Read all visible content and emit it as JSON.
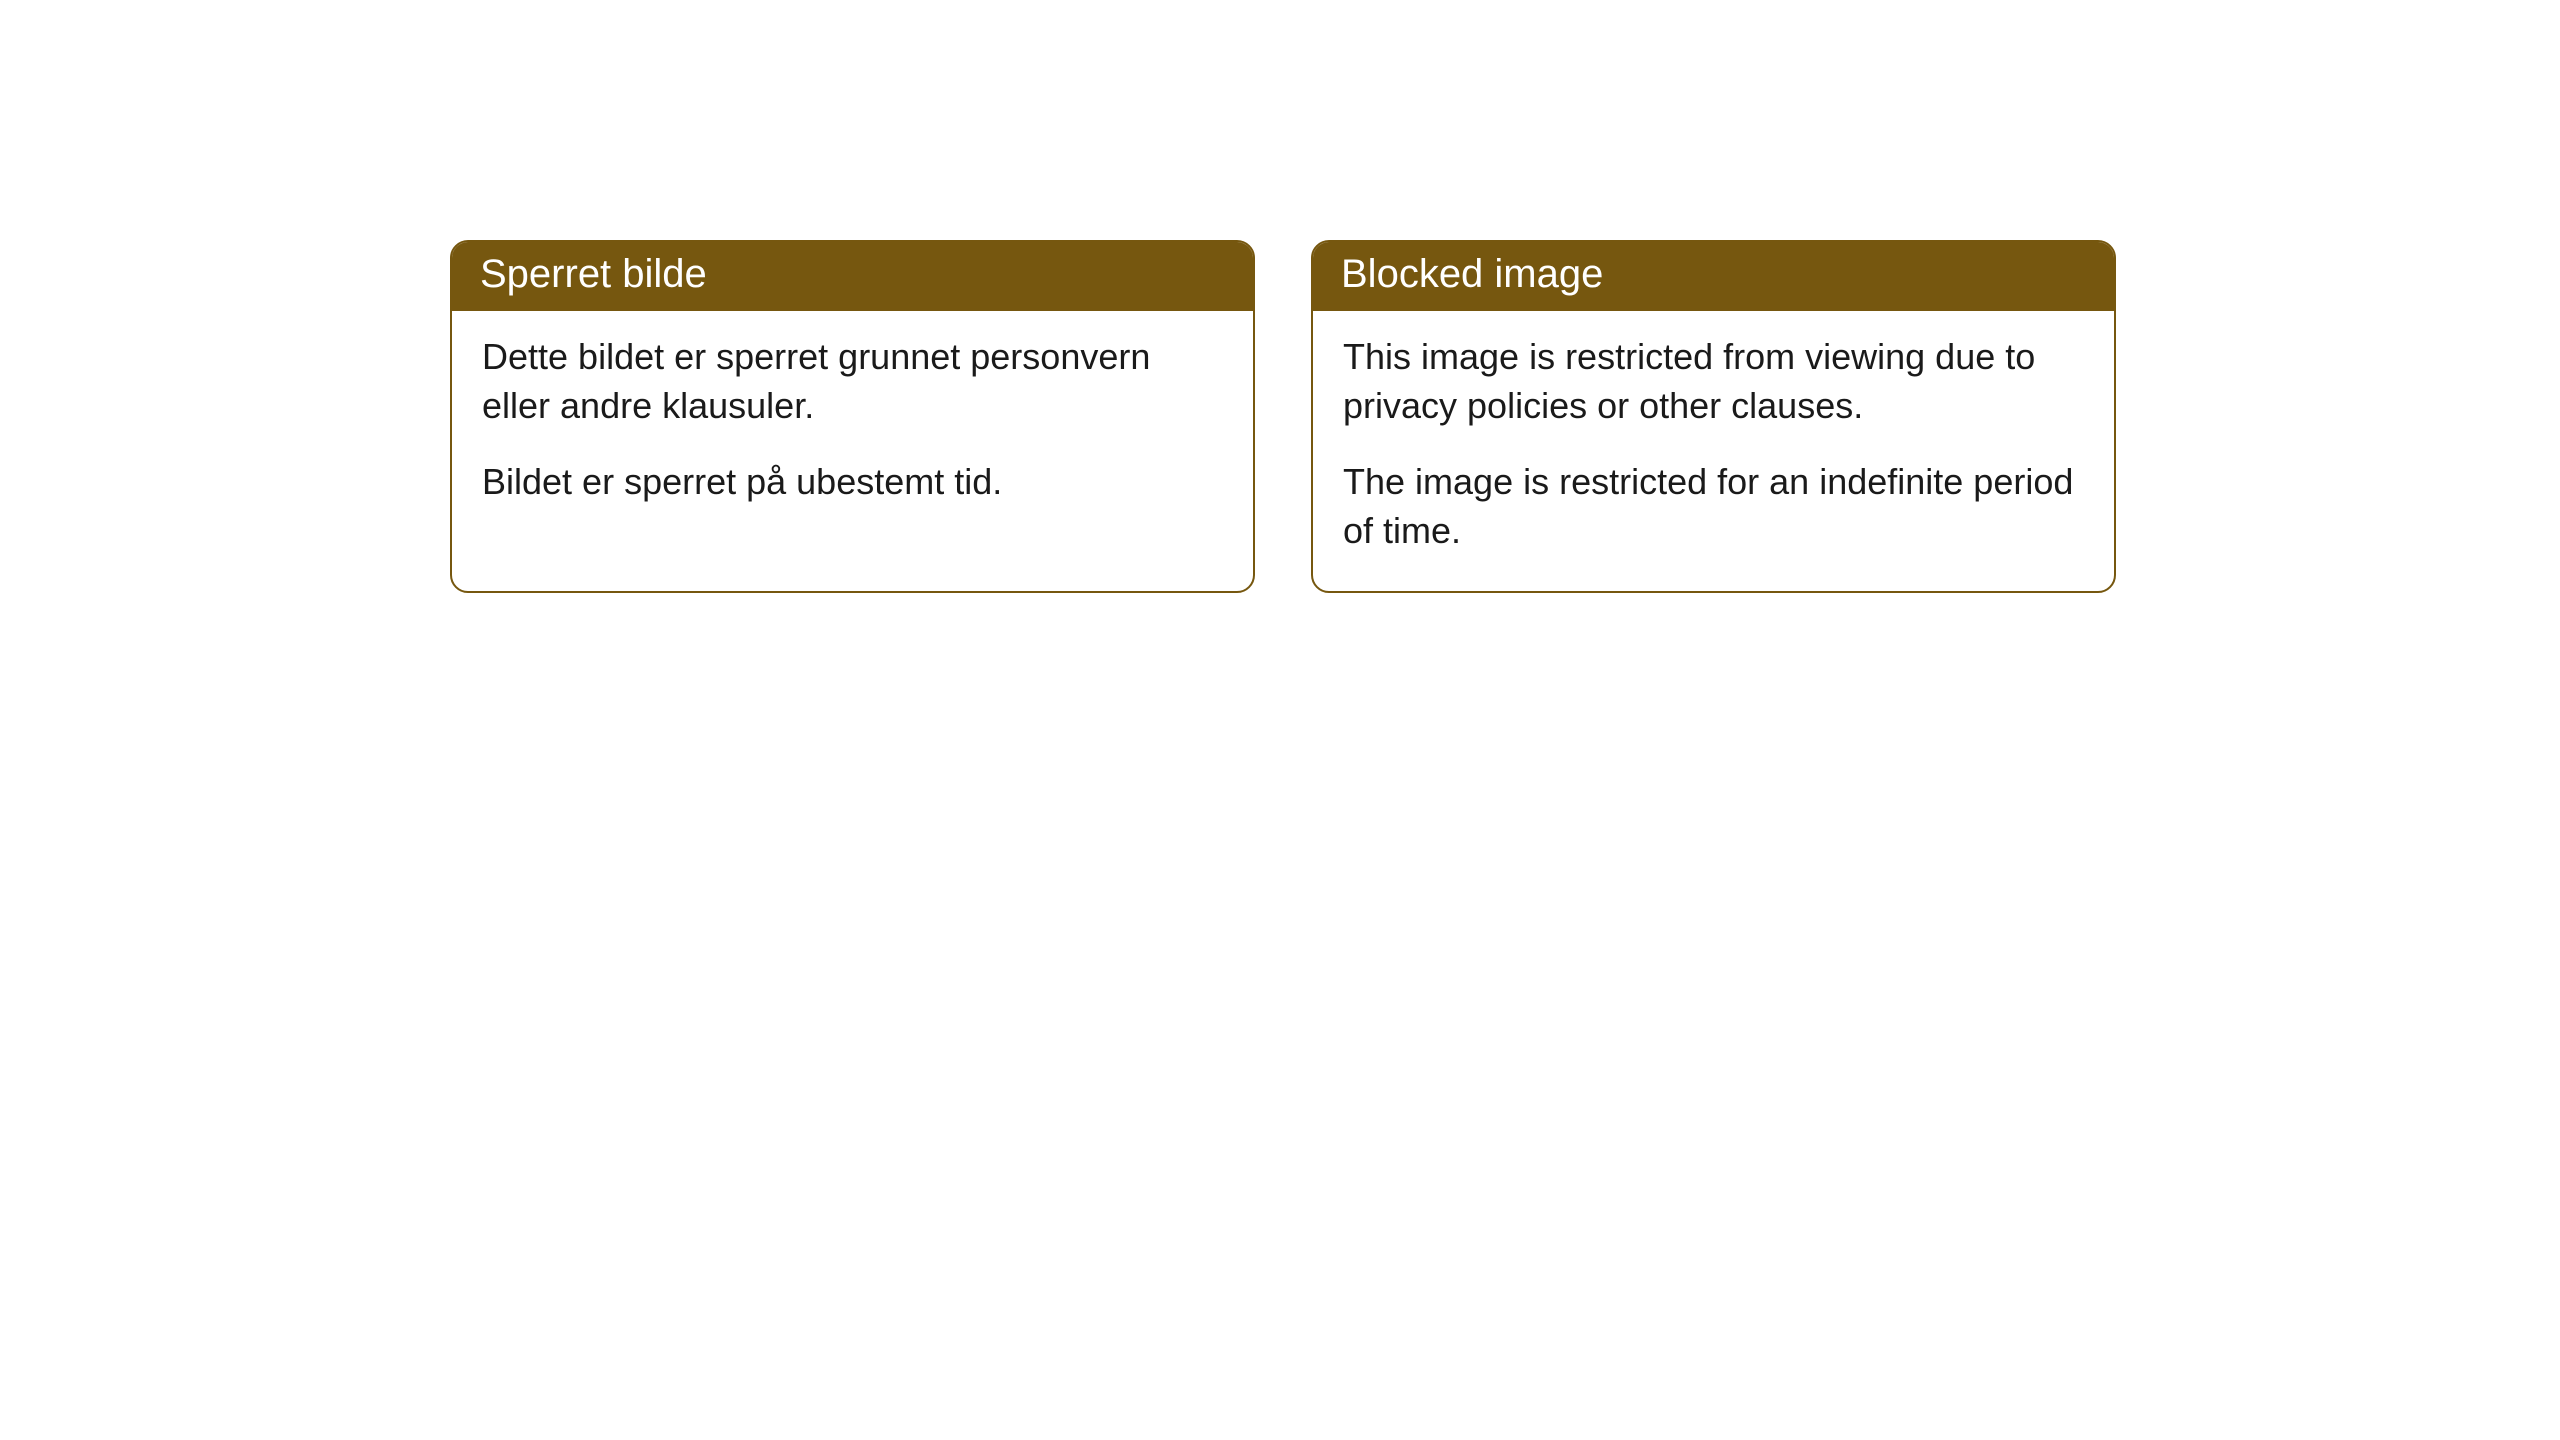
{
  "cards": [
    {
      "title": "Sperret bilde",
      "paragraph1": "Dette bildet er sperret grunnet personvern eller andre klausuler.",
      "paragraph2": "Bildet er sperret på ubestemt tid."
    },
    {
      "title": "Blocked image",
      "paragraph1": "This image is restricted from viewing due to privacy policies or other clauses.",
      "paragraph2": "The image is restricted for an indefinite period of time."
    }
  ],
  "style": {
    "header_bg_color": "#76570f",
    "header_text_color": "#ffffff",
    "border_color": "#76570f",
    "body_bg_color": "#ffffff",
    "body_text_color": "#1a1a1a",
    "border_radius": 18,
    "header_fontsize": 40,
    "body_fontsize": 36
  }
}
